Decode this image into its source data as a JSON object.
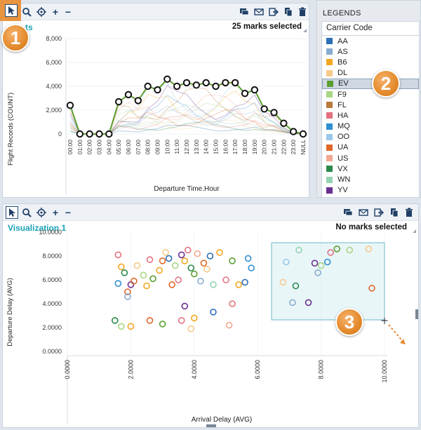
{
  "top_viz": {
    "title_fragment": "ts",
    "marks_status": "25 marks selected",
    "ylabel": "Flight Records (COUNT)",
    "xlabel": "Departure Time.Hour",
    "y_ticks": [
      "8,000",
      "6,000",
      "4,000",
      "2,000",
      "0"
    ],
    "x_ticks": [
      "00:00",
      "01:00",
      "02:00",
      "03:00",
      "04:00",
      "05:00",
      "06:00",
      "07:00",
      "08:00",
      "09:00",
      "10:00",
      "11:00",
      "12:00",
      "13:00",
      "14:00",
      "15:00",
      "16:00",
      "17:00",
      "18:00",
      "19:00",
      "20:00",
      "21:00",
      "22:00",
      "23:00",
      "NULL"
    ]
  },
  "legend": {
    "title": "LEGENDS",
    "header": "Carrier Code",
    "items": [
      {
        "label": "AA",
        "color": "#2c6fb5"
      },
      {
        "label": "AS",
        "color": "#88acd1"
      },
      {
        "label": "B6",
        "color": "#f4a622"
      },
      {
        "label": "DL",
        "color": "#f6ca8a"
      },
      {
        "label": "EV",
        "color": "#5a9e2f",
        "selected": true
      },
      {
        "label": "F9",
        "color": "#a9d684"
      },
      {
        "label": "FL",
        "color": "#b9793d"
      },
      {
        "label": "HA",
        "color": "#e3727f"
      },
      {
        "label": "MQ",
        "color": "#2f8fd0"
      },
      {
        "label": "OO",
        "color": "#9cc7ea"
      },
      {
        "label": "UA",
        "color": "#e0672a"
      },
      {
        "label": "US",
        "color": "#f2a792"
      },
      {
        "label": "VX",
        "color": "#2b8a4b"
      },
      {
        "label": "WN",
        "color": "#94d3b1"
      },
      {
        "label": "YV",
        "color": "#6b2f8f"
      }
    ]
  },
  "bottom_viz": {
    "title": "Visualization 1",
    "marks_status": "No marks selected",
    "ylabel": "Departure Delay (AVG)",
    "xlabel": "Arrival Delay (AVG)",
    "y_ticks": [
      "10.0000",
      "8.0000",
      "6.0000",
      "4.0000",
      "2.0000",
      "0.0000"
    ],
    "x_ticks": [
      "0.0000",
      "2.0000",
      "4.0000",
      "6.0000",
      "8.0000",
      "10.0000"
    ]
  },
  "badges": [
    "1",
    "2",
    "3"
  ],
  "chart_data": [
    {
      "type": "line",
      "xlabel": "Departure Time.Hour",
      "ylabel": "Flight Records (COUNT)",
      "ylim": [
        0,
        8000
      ],
      "categories": [
        "00:00",
        "01:00",
        "02:00",
        "03:00",
        "04:00",
        "05:00",
        "06:00",
        "07:00",
        "08:00",
        "09:00",
        "10:00",
        "11:00",
        "12:00",
        "13:00",
        "14:00",
        "15:00",
        "16:00",
        "17:00",
        "18:00",
        "19:00",
        "20:00",
        "21:00",
        "22:00",
        "23:00",
        "NULL"
      ],
      "series": [
        {
          "name": "EV",
          "values": [
            2400,
            0,
            0,
            0,
            0,
            2700,
            3300,
            2800,
            4000,
            3700,
            4600,
            4000,
            4300,
            4100,
            4300,
            4000,
            4300,
            4300,
            3400,
            3700,
            2100,
            1800,
            900,
            200,
            0
          ]
        }
      ]
    },
    {
      "type": "scatter",
      "xlabel": "Arrival Delay (AVG)",
      "ylabel": "Departure Delay (AVG)",
      "xlim": [
        0,
        10
      ],
      "ylim": [
        0,
        10
      ],
      "points": [
        [
          1.6,
          5.7,
          "#2f8fd0"
        ],
        [
          1.7,
          7.1,
          "#f4a622"
        ],
        [
          1.8,
          6.6,
          "#2b8a4b"
        ],
        [
          1.9,
          5.0,
          "#e0672a"
        ],
        [
          1.6,
          8.1,
          "#e3727f"
        ],
        [
          2.0,
          5.6,
          "#6b2f8f"
        ],
        [
          2.1,
          5.9,
          "#e0672a"
        ],
        [
          1.9,
          4.6,
          "#88acd1"
        ],
        [
          2.2,
          7.2,
          "#f6ca8a"
        ],
        [
          2.4,
          6.4,
          "#a9d684"
        ],
        [
          2.5,
          5.5,
          "#f4a622"
        ],
        [
          2.6,
          7.7,
          "#e3727f"
        ],
        [
          2.7,
          6.1,
          "#5a9e2f"
        ],
        [
          2.9,
          6.8,
          "#f4a622"
        ],
        [
          3.0,
          7.6,
          "#e0672a"
        ],
        [
          3.1,
          8.3,
          "#f6ca8a"
        ],
        [
          3.2,
          7.8,
          "#2c6fb5"
        ],
        [
          3.3,
          5.6,
          "#e0672a"
        ],
        [
          3.4,
          7.2,
          "#a9d684"
        ],
        [
          3.5,
          6.0,
          "#e3727f"
        ],
        [
          3.6,
          8.1,
          "#6b2f8f"
        ],
        [
          3.7,
          7.6,
          "#f4a622"
        ],
        [
          3.8,
          8.5,
          "#e3727f"
        ],
        [
          3.9,
          7.0,
          "#2b8a4b"
        ],
        [
          4.0,
          6.5,
          "#5a9e2f"
        ],
        [
          4.1,
          8.2,
          "#f2a792"
        ],
        [
          4.2,
          5.9,
          "#88acd1"
        ],
        [
          4.3,
          7.4,
          "#e0672a"
        ],
        [
          4.4,
          6.9,
          "#f6ca8a"
        ],
        [
          4.5,
          8.0,
          "#2c6fb5"
        ],
        [
          4.6,
          5.6,
          "#94d3b1"
        ],
        [
          4.8,
          8.3,
          "#f4a622"
        ],
        [
          5.0,
          6.0,
          "#e3727f"
        ],
        [
          5.2,
          7.6,
          "#5a9e2f"
        ],
        [
          5.4,
          5.6,
          "#f4a622"
        ],
        [
          5.6,
          5.8,
          "#2c6fb5"
        ],
        [
          5.7,
          7.8,
          "#2f8fd0"
        ],
        [
          5.8,
          7.0,
          "#2f8fd0"
        ],
        [
          3.7,
          3.8,
          "#6b2f8f"
        ],
        [
          3.6,
          2.6,
          "#e3727f"
        ],
        [
          3.0,
          2.3,
          "#5a9e2f"
        ],
        [
          2.6,
          2.6,
          "#e0672a"
        ],
        [
          1.5,
          2.6,
          "#2b8a4b"
        ],
        [
          1.7,
          2.1,
          "#a9d684"
        ],
        [
          2.0,
          2.1,
          "#f4a622"
        ],
        [
          3.9,
          1.9,
          "#f6ca8a"
        ],
        [
          4.6,
          3.3,
          "#2c6fb5"
        ],
        [
          5.2,
          4.0,
          "#e3727f"
        ],
        [
          5.1,
          2.2,
          "#f2a792"
        ],
        [
          4.0,
          2.8,
          "#f4a622"
        ],
        [
          6.8,
          5.8,
          "#f6ca8a"
        ],
        [
          6.9,
          7.5,
          "#9cc7ea"
        ],
        [
          7.1,
          4.1,
          "#88acd1"
        ],
        [
          7.2,
          5.5,
          "#2b8a4b"
        ],
        [
          7.3,
          8.5,
          "#94d3b1"
        ],
        [
          7.6,
          4.1,
          "#6b2f8f"
        ],
        [
          7.8,
          7.4,
          "#6b2f8f"
        ],
        [
          7.9,
          6.6,
          "#88acd1"
        ],
        [
          8.0,
          7.2,
          "#a9d684"
        ],
        [
          8.2,
          7.5,
          "#2f8fd0"
        ],
        [
          8.5,
          8.6,
          "#5a9e2f"
        ],
        [
          8.9,
          8.5,
          "#a9d684"
        ],
        [
          9.5,
          8.6,
          "#f6ca8a"
        ],
        [
          9.6,
          5.3,
          "#e0672a"
        ],
        [
          8.3,
          8.3,
          "#e3727f"
        ]
      ]
    }
  ]
}
